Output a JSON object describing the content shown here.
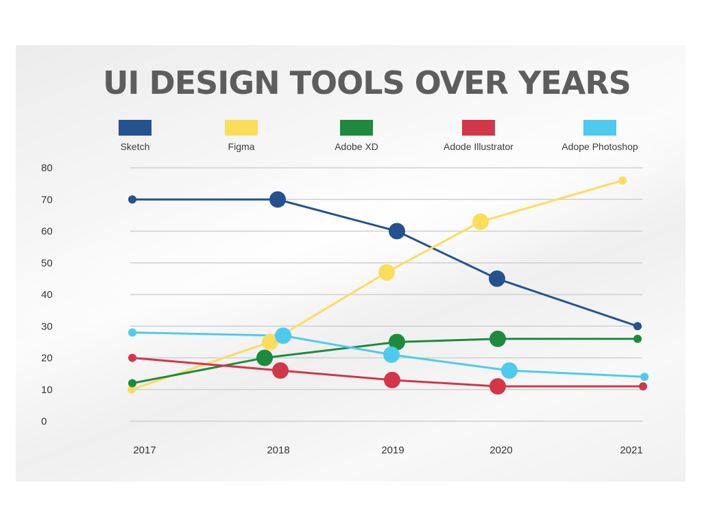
{
  "chart_data": {
    "type": "line",
    "title": "UI DESIGN TOOLS OVER YEARS",
    "x": [
      "2017",
      "2018",
      "2019",
      "2020",
      "2021"
    ],
    "ylim": [
      0,
      80
    ],
    "yticks": [
      0,
      10,
      20,
      30,
      40,
      50,
      60,
      70,
      80
    ],
    "grid": true,
    "legend_position": "top",
    "series": [
      {
        "name": "Sketch",
        "color": "#24528f",
        "values": [
          70,
          70,
          60,
          45,
          30
        ]
      },
      {
        "name": "Figma",
        "color": "#fbdd5c",
        "values": [
          10,
          25,
          47,
          63,
          76
        ]
      },
      {
        "name": "Adobe XD",
        "color": "#1e8a3c",
        "values": [
          12,
          20,
          25,
          26,
          26
        ]
      },
      {
        "name": "Adode Illustrator",
        "color": "#d23649",
        "values": [
          20,
          16,
          13,
          11,
          11
        ]
      },
      {
        "name": "Adope Photoshop",
        "color": "#4ecaef",
        "values": [
          28,
          27,
          21,
          16,
          14
        ]
      }
    ]
  }
}
